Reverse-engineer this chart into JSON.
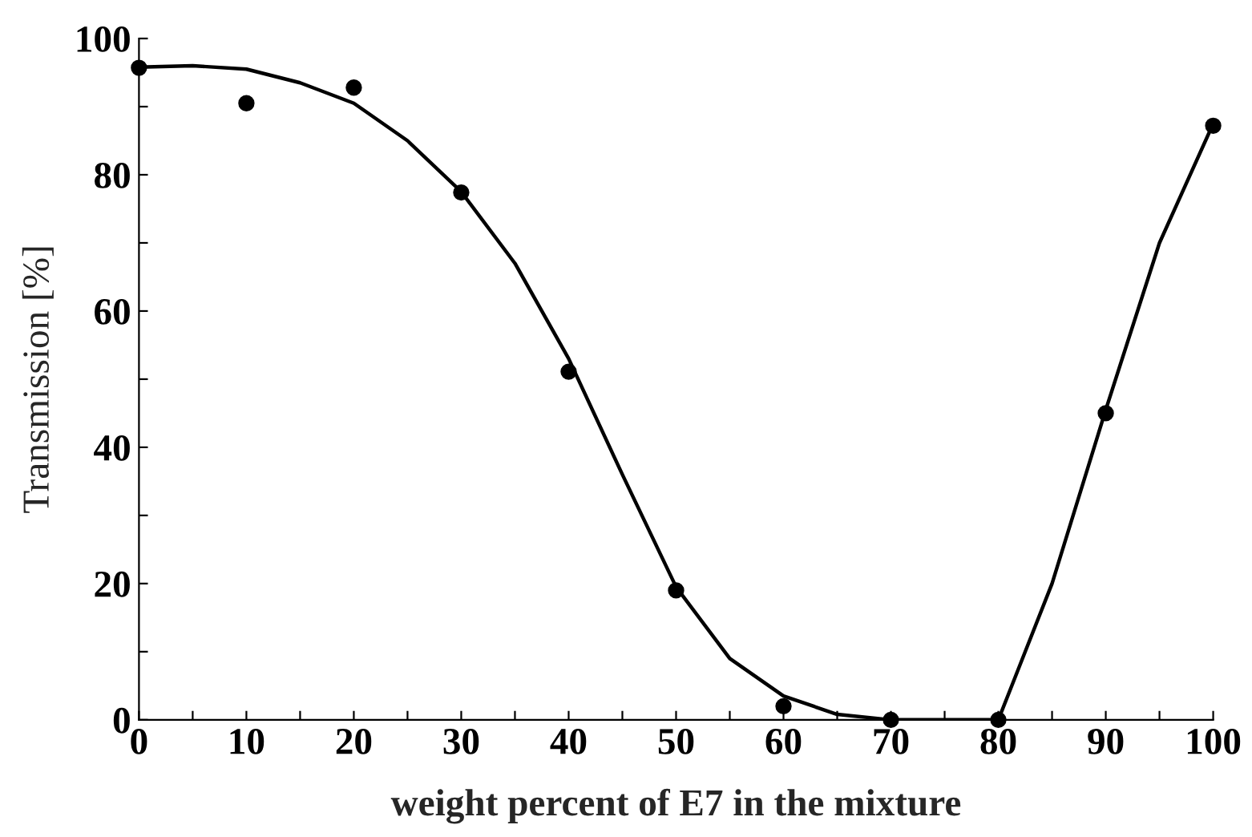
{
  "chart_data": {
    "type": "scatter",
    "xlabel": "weight percent of E7 in the mixture",
    "ylabel": "Transmission [%]",
    "xlim": [
      0,
      100
    ],
    "ylim": [
      0,
      100
    ],
    "xticks": [
      0,
      {
        "value": 5,
        "label": null
      },
      10,
      {
        "value": 15,
        "label": null
      },
      20,
      {
        "value": 25,
        "label": null
      },
      30,
      {
        "value": 35,
        "label": null
      },
      40,
      {
        "value": 45,
        "label": null
      },
      50,
      {
        "value": 55,
        "label": null
      },
      60,
      {
        "value": 65,
        "label": null
      },
      70,
      {
        "value": 75,
        "label": null
      },
      80,
      {
        "value": 85,
        "label": null
      },
      90,
      {
        "value": 95,
        "label": null
      },
      100
    ],
    "yticks": [
      0,
      {
        "value": 10,
        "label": null
      },
      20,
      {
        "value": 30,
        "label": null
      },
      40,
      {
        "value": 50,
        "label": null
      },
      60,
      {
        "value": 70,
        "label": null
      },
      80,
      {
        "value": 90,
        "label": null
      },
      100
    ],
    "grid": false,
    "legend": false,
    "series": [
      {
        "type": "line",
        "color": "#000000",
        "marker": "none",
        "line_style": "solid",
        "x": [
          0,
          5,
          10,
          15,
          20,
          25,
          30,
          35,
          40,
          45,
          50,
          55,
          60,
          65,
          70,
          75,
          80,
          85,
          90,
          95,
          100
        ],
        "values": [
          95.8,
          96,
          95.5,
          93.5,
          90.5,
          85,
          77.5,
          67,
          53,
          36,
          19.5,
          9,
          3.5,
          0.8,
          0,
          0,
          0,
          20,
          45.5,
          70,
          87.5
        ]
      },
      {
        "color": "#000000",
        "marker": "circle",
        "x": [
          0,
          10,
          20,
          30,
          40,
          50,
          60,
          70,
          80,
          90,
          100
        ],
        "values": [
          95.7,
          90.5,
          92.8,
          77.4,
          51.1,
          19,
          2,
          0,
          0,
          45,
          87.2
        ]
      }
    ]
  }
}
